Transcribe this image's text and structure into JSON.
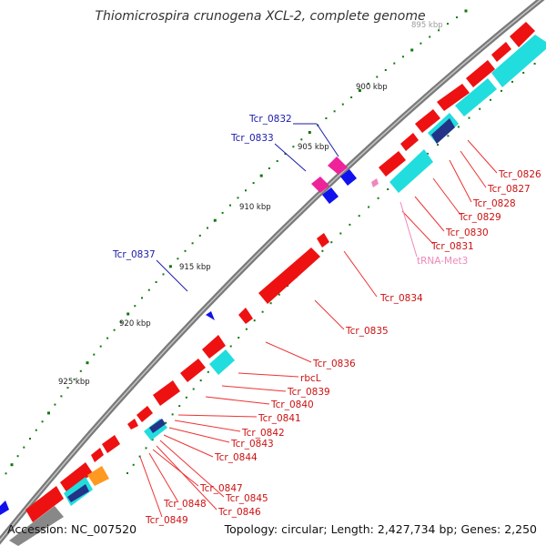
{
  "title": "Thiomicrospira crunogena XCL-2, complete genome",
  "footer": {
    "accession": "Accession: NC_007520",
    "topology": "Topology: circular; Length: 2,427,734 bp; Genes: 2,250"
  },
  "colors": {
    "backbone": "#8a8a8a",
    "forward_gene": "#ee1111",
    "forward_label": "#cc1111",
    "reverse_label": "#1a1aaa",
    "trna": "#ee88bb",
    "tick": "#117711",
    "cyan": "#22dddd",
    "navy": "#223388",
    "blue": "#1111ee",
    "magenta": "#ee2299",
    "orange": "#ff9922"
  },
  "scale_labels": [
    {
      "text": "895 kbp",
      "faded": true
    },
    {
      "text": "900 kbp"
    },
    {
      "text": "905 kbp"
    },
    {
      "text": "910 kbp"
    },
    {
      "text": "915 kbp"
    },
    {
      "text": "920 kbp"
    },
    {
      "text": "925 kbp"
    }
  ],
  "gene_labels": [
    {
      "name": "Tcr_0826",
      "color": "red"
    },
    {
      "name": "Tcr_0827",
      "color": "red"
    },
    {
      "name": "Tcr_0828",
      "color": "red"
    },
    {
      "name": "Tcr_0829",
      "color": "red"
    },
    {
      "name": "Tcr_0830",
      "color": "red"
    },
    {
      "name": "Tcr_0831",
      "color": "red"
    },
    {
      "name": "tRNA-Met3",
      "color": "pink"
    },
    {
      "name": "Tcr_0832",
      "color": "blue"
    },
    {
      "name": "Tcr_0833",
      "color": "blue"
    },
    {
      "name": "Tcr_0834",
      "color": "red"
    },
    {
      "name": "Tcr_0835",
      "color": "red"
    },
    {
      "name": "Tcr_0837",
      "color": "blue"
    },
    {
      "name": "Tcr_0836",
      "color": "red"
    },
    {
      "name": "rbcL",
      "color": "red"
    },
    {
      "name": "Tcr_0839",
      "color": "red"
    },
    {
      "name": "Tcr_0840",
      "color": "red"
    },
    {
      "name": "Tcr_0841",
      "color": "red"
    },
    {
      "name": "Tcr_0842",
      "color": "red"
    },
    {
      "name": "Tcr_0843",
      "color": "red"
    },
    {
      "name": "Tcr_0844",
      "color": "red"
    },
    {
      "name": "Tcr_0845",
      "color": "red"
    },
    {
      "name": "Tcr_0846",
      "color": "red"
    },
    {
      "name": "Tcr_0847",
      "color": "red"
    },
    {
      "name": "Tcr_0848",
      "color": "red"
    },
    {
      "name": "Tcr_0849",
      "color": "red"
    }
  ]
}
